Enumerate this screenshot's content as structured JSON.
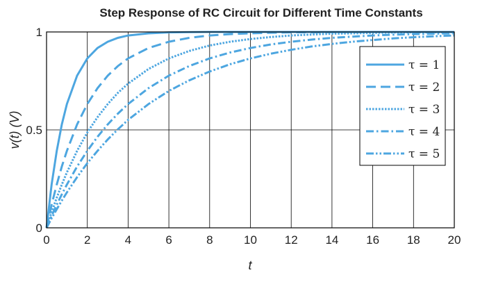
{
  "chart_data": {
    "type": "line",
    "title": "Step Response of RC Circuit for Different Time Constants",
    "xlabel": "t",
    "ylabel": "v(t) (V)",
    "xlim": [
      0,
      20
    ],
    "ylim": [
      0,
      1
    ],
    "x_ticks": [
      "0",
      "2",
      "4",
      "6",
      "8",
      "10",
      "12",
      "14",
      "16",
      "18",
      "20"
    ],
    "y_ticks": [
      "0",
      "0.5",
      "1"
    ],
    "grid": true,
    "legend_position": "upper-right",
    "line_color": "#4da6e0",
    "x": [
      0,
      0.25,
      0.5,
      0.75,
      1,
      1.5,
      2,
      2.5,
      3,
      3.5,
      4,
      5,
      6,
      7,
      8,
      9,
      10,
      11,
      12,
      13,
      14,
      15,
      16,
      17,
      18,
      19,
      20
    ],
    "series": [
      {
        "name": "τ = 1",
        "dash": "solid",
        "values": [
          0,
          0.221,
          0.393,
          0.528,
          0.632,
          0.777,
          0.865,
          0.918,
          0.95,
          0.97,
          0.982,
          0.993,
          0.998,
          0.999,
          1.0,
          1.0,
          1.0,
          1.0,
          1.0,
          1.0,
          1.0,
          1.0,
          1.0,
          1.0,
          1.0,
          1.0,
          1.0
        ]
      },
      {
        "name": "τ = 2",
        "dash": "dashed",
        "values": [
          0,
          0.118,
          0.221,
          0.313,
          0.393,
          0.528,
          0.632,
          0.713,
          0.777,
          0.826,
          0.865,
          0.918,
          0.95,
          0.97,
          0.982,
          0.989,
          0.993,
          0.996,
          0.998,
          0.998,
          0.999,
          0.999,
          1.0,
          1.0,
          1.0,
          1.0,
          1.0
        ]
      },
      {
        "name": "τ = 3",
        "dash": "dotted",
        "values": [
          0,
          0.08,
          0.154,
          0.221,
          0.283,
          0.393,
          0.487,
          0.565,
          0.632,
          0.689,
          0.736,
          0.811,
          0.865,
          0.903,
          0.931,
          0.95,
          0.964,
          0.974,
          0.982,
          0.987,
          0.991,
          0.993,
          0.995,
          0.997,
          0.998,
          0.998,
          0.999
        ]
      },
      {
        "name": "τ = 4",
        "dash": "dash-dot",
        "values": [
          0,
          0.061,
          0.118,
          0.171,
          0.221,
          0.313,
          0.393,
          0.465,
          0.528,
          0.583,
          0.632,
          0.713,
          0.777,
          0.826,
          0.865,
          0.895,
          0.918,
          0.936,
          0.95,
          0.961,
          0.97,
          0.976,
          0.982,
          0.986,
          0.989,
          0.991,
          0.993
        ]
      },
      {
        "name": "τ = 5",
        "dash": "dash-dot-dot",
        "values": [
          0,
          0.049,
          0.095,
          0.139,
          0.181,
          0.259,
          0.33,
          0.393,
          0.451,
          0.503,
          0.551,
          0.632,
          0.699,
          0.753,
          0.798,
          0.835,
          0.865,
          0.889,
          0.909,
          0.926,
          0.939,
          0.95,
          0.959,
          0.967,
          0.973,
          0.978,
          0.982
        ]
      }
    ]
  }
}
